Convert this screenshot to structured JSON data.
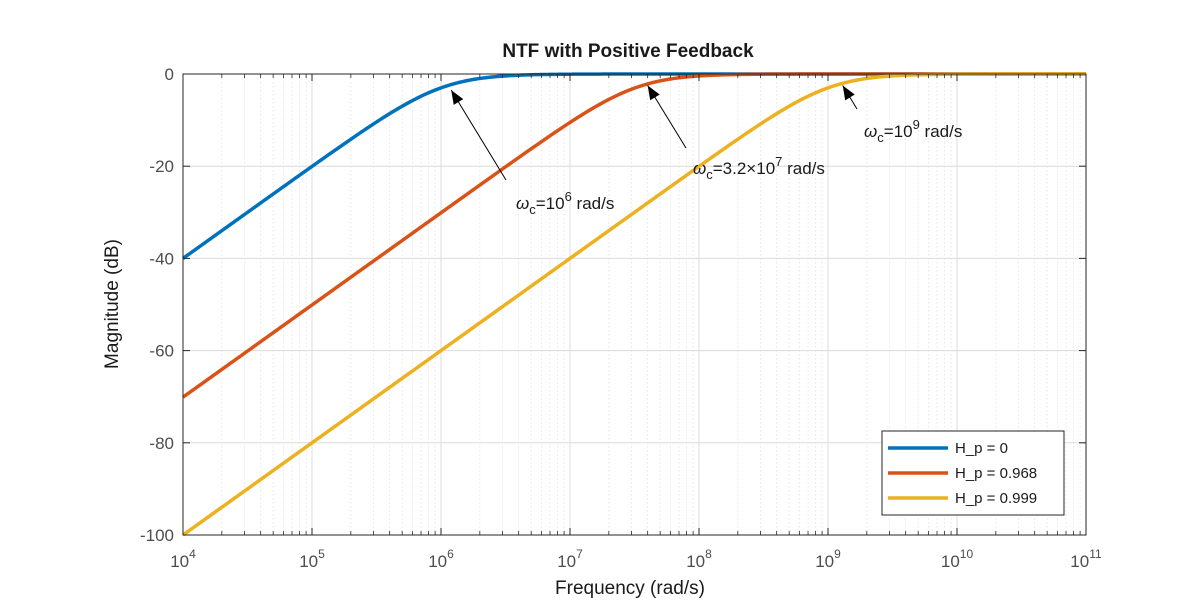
{
  "chart_data": {
    "type": "line",
    "title": "NTF with Positive Feedback",
    "xlabel": "Frequency  (rad/s)",
    "ylabel": "Magnitude (dB)",
    "xscale": "log",
    "xlim": [
      10000,
      100000000000
    ],
    "ylim": [
      -100,
      0
    ],
    "x_ticks": [
      {
        "base": "10",
        "exp": "4"
      },
      {
        "base": "10",
        "exp": "5"
      },
      {
        "base": "10",
        "exp": "6"
      },
      {
        "base": "10",
        "exp": "7"
      },
      {
        "base": "10",
        "exp": "8"
      },
      {
        "base": "10",
        "exp": "9"
      },
      {
        "base": "10",
        "exp": "10"
      },
      {
        "base": "10",
        "exp": "11"
      }
    ],
    "y_ticks": [
      "0",
      "-20",
      "-40",
      "-60",
      "-80",
      "-100"
    ],
    "grid": true,
    "minor_grid": true,
    "legend_position": "bottom-right",
    "series": [
      {
        "name": "H_p = 0",
        "color": "#0072BD",
        "corner_frequency": 1000000,
        "x": [
          10000,
          100000,
          1000000,
          10000000,
          100000000,
          1000000000,
          10000000000,
          100000000000
        ],
        "y": [
          -40,
          -20,
          -3,
          -0.04,
          0,
          0,
          0,
          0
        ]
      },
      {
        "name": "H_p = 0.968",
        "color": "#D95319",
        "corner_frequency": 32000000,
        "x": [
          10000,
          100000,
          1000000,
          10000000,
          100000000,
          1000000000,
          10000000000,
          100000000000
        ],
        "y": [
          -70,
          -50,
          -30,
          -10.4,
          -0.4,
          0,
          0,
          0
        ]
      },
      {
        "name": "H_p = 0.999",
        "color": "#EDB120",
        "corner_frequency": 1000000000,
        "x": [
          10000,
          100000,
          1000000,
          10000000,
          100000000,
          1000000000,
          10000000000,
          100000000000
        ],
        "y": [
          -100,
          -80,
          -60,
          -40,
          -20,
          -3,
          -0.04,
          0
        ]
      }
    ],
    "annotations": [
      {
        "symbol": "ω",
        "sub": "c",
        "mid": "=10",
        "sup": "6",
        "tail": " rad/s",
        "point": [
          1200000,
          -3.5
        ]
      },
      {
        "symbol": "ω",
        "sub": "c",
        "mid": "=3.2×10",
        "sup": "7",
        "tail": " rad/s",
        "point": [
          40000000,
          -2.5
        ]
      },
      {
        "symbol": "ω",
        "sub": "c",
        "mid": "=10",
        "sup": "9",
        "tail": " rad/s",
        "point": [
          1300000000,
          -2.5
        ]
      }
    ]
  }
}
